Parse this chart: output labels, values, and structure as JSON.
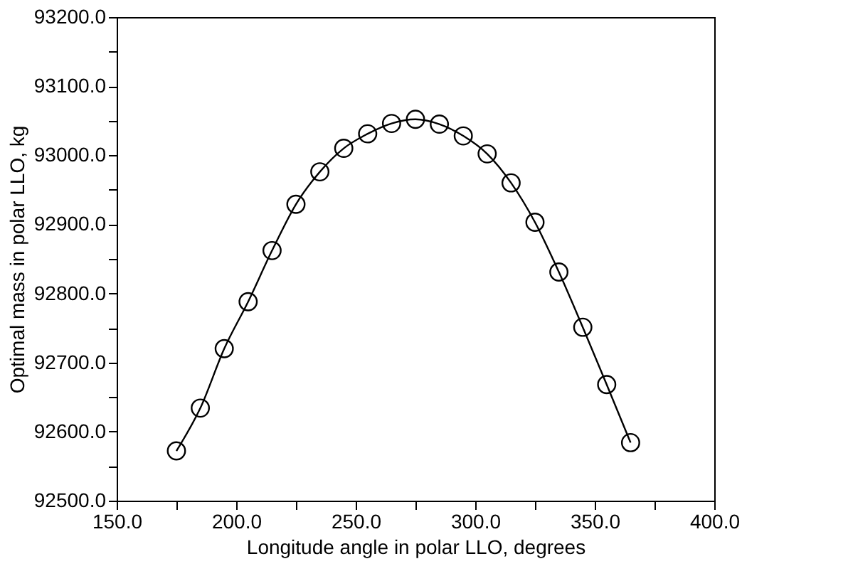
{
  "chart_data": {
    "type": "line",
    "xlabel": "Longitude angle in polar LLO, degrees",
    "ylabel": "Optimal mass in polar LLO, kg",
    "x": [
      175,
      185,
      195,
      205,
      215,
      225,
      235,
      245,
      255,
      265,
      275,
      285,
      295,
      305,
      315,
      325,
      335,
      345,
      355,
      365
    ],
    "series": [
      {
        "color": "#000000",
        "values": [
          92572,
          92634,
          92720,
          92788,
          92862,
          92929,
          92976,
          93010,
          93031,
          93046,
          93052,
          93045,
          93028,
          93002,
          92960,
          92903,
          92831,
          92751,
          92668,
          92584
        ]
      }
    ],
    "marker": "circle",
    "line_style": "solid",
    "grid": false,
    "xlim": [
      150,
      400
    ],
    "xticks": [
      {
        "value": 150,
        "label": "150.0"
      },
      {
        "value": 175,
        "label": null
      },
      {
        "value": 200,
        "label": "200.0"
      },
      {
        "value": 225,
        "label": null
      },
      {
        "value": 250,
        "label": "250.0"
      },
      {
        "value": 275,
        "label": null
      },
      {
        "value": 300,
        "label": "300.0"
      },
      {
        "value": 325,
        "label": null
      },
      {
        "value": 350,
        "label": "350.0"
      },
      {
        "value": 375,
        "label": null
      },
      {
        "value": 400,
        "label": "400.0"
      }
    ],
    "ylim": [
      92500,
      93200
    ],
    "yticks": [
      {
        "value": 92500,
        "label": "92500.0"
      },
      {
        "value": 92550,
        "label": null
      },
      {
        "value": 92600,
        "label": "92600.0"
      },
      {
        "value": 92650,
        "label": null
      },
      {
        "value": 92700,
        "label": "92700.0"
      },
      {
        "value": 92750,
        "label": null
      },
      {
        "value": 92800,
        "label": "92800.0"
      },
      {
        "value": 92850,
        "label": null
      },
      {
        "value": 92900,
        "label": "92900.0"
      },
      {
        "value": 92950,
        "label": null
      },
      {
        "value": 93000,
        "label": "93000.0"
      },
      {
        "value": 93050,
        "label": null
      },
      {
        "value": 93100,
        "label": "93100.0"
      },
      {
        "value": 93150,
        "label": null
      },
      {
        "value": 93200,
        "label": "93200.0"
      }
    ]
  }
}
